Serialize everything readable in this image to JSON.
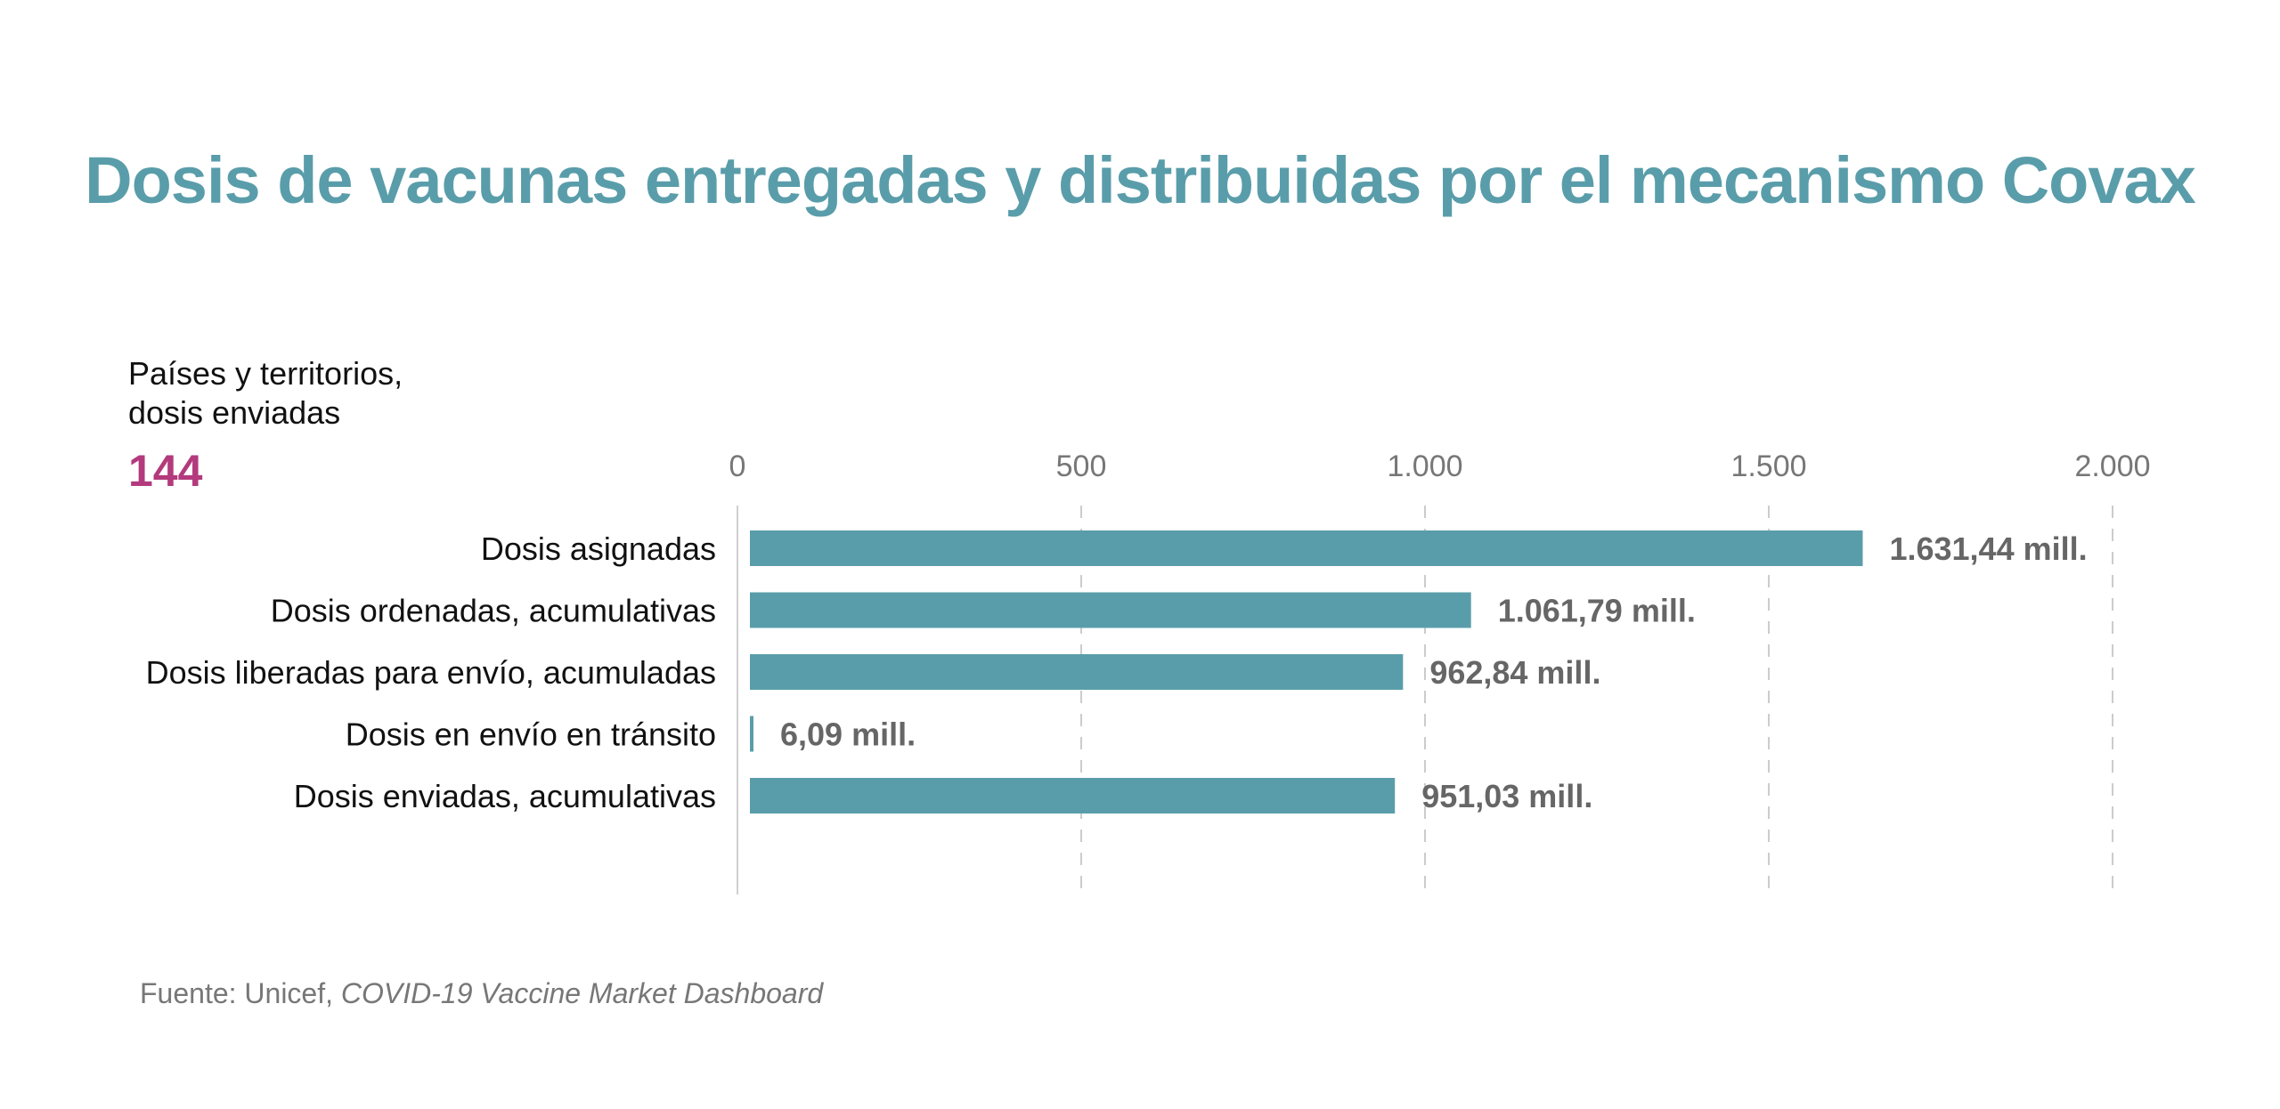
{
  "title": "Dosis de vacunas entregadas y distribuidas por el mecanismo Covax",
  "kpi": {
    "label_line1": "Países y territorios,",
    "label_line2": "dosis enviadas",
    "value": "144"
  },
  "source": {
    "prefix": "Fuente: Unicef, ",
    "name": "COVID-19 Vaccine Market Dashboard"
  },
  "colors": {
    "bar": "#5a9daa",
    "title": "#5a9daa",
    "kpi": "#b33a7c",
    "value_label": "#666666",
    "grid": "#cccccc"
  },
  "chart_data": {
    "type": "bar",
    "orientation": "horizontal",
    "categories": [
      "Dosis asignadas",
      "Dosis ordenadas, acumulativas",
      "Dosis liberadas para envío, acumuladas",
      "Dosis en envío en tránsito",
      "Dosis enviadas, acumulativas"
    ],
    "values": [
      1631.44,
      1061.79,
      962.84,
      6.09,
      951.03
    ],
    "value_labels": [
      "1.631,44 mill.",
      "1.061,79 mill.",
      "962,84 mill.",
      "6,09 mill.",
      "951,03 mill."
    ],
    "xlim": [
      0,
      2000
    ],
    "xticks": [
      0,
      500,
      1000,
      1500,
      2000
    ],
    "xtick_labels": [
      "0",
      "500",
      "1.000",
      "1.500",
      "2.000"
    ],
    "grid": true,
    "xaxis_position": "top"
  }
}
